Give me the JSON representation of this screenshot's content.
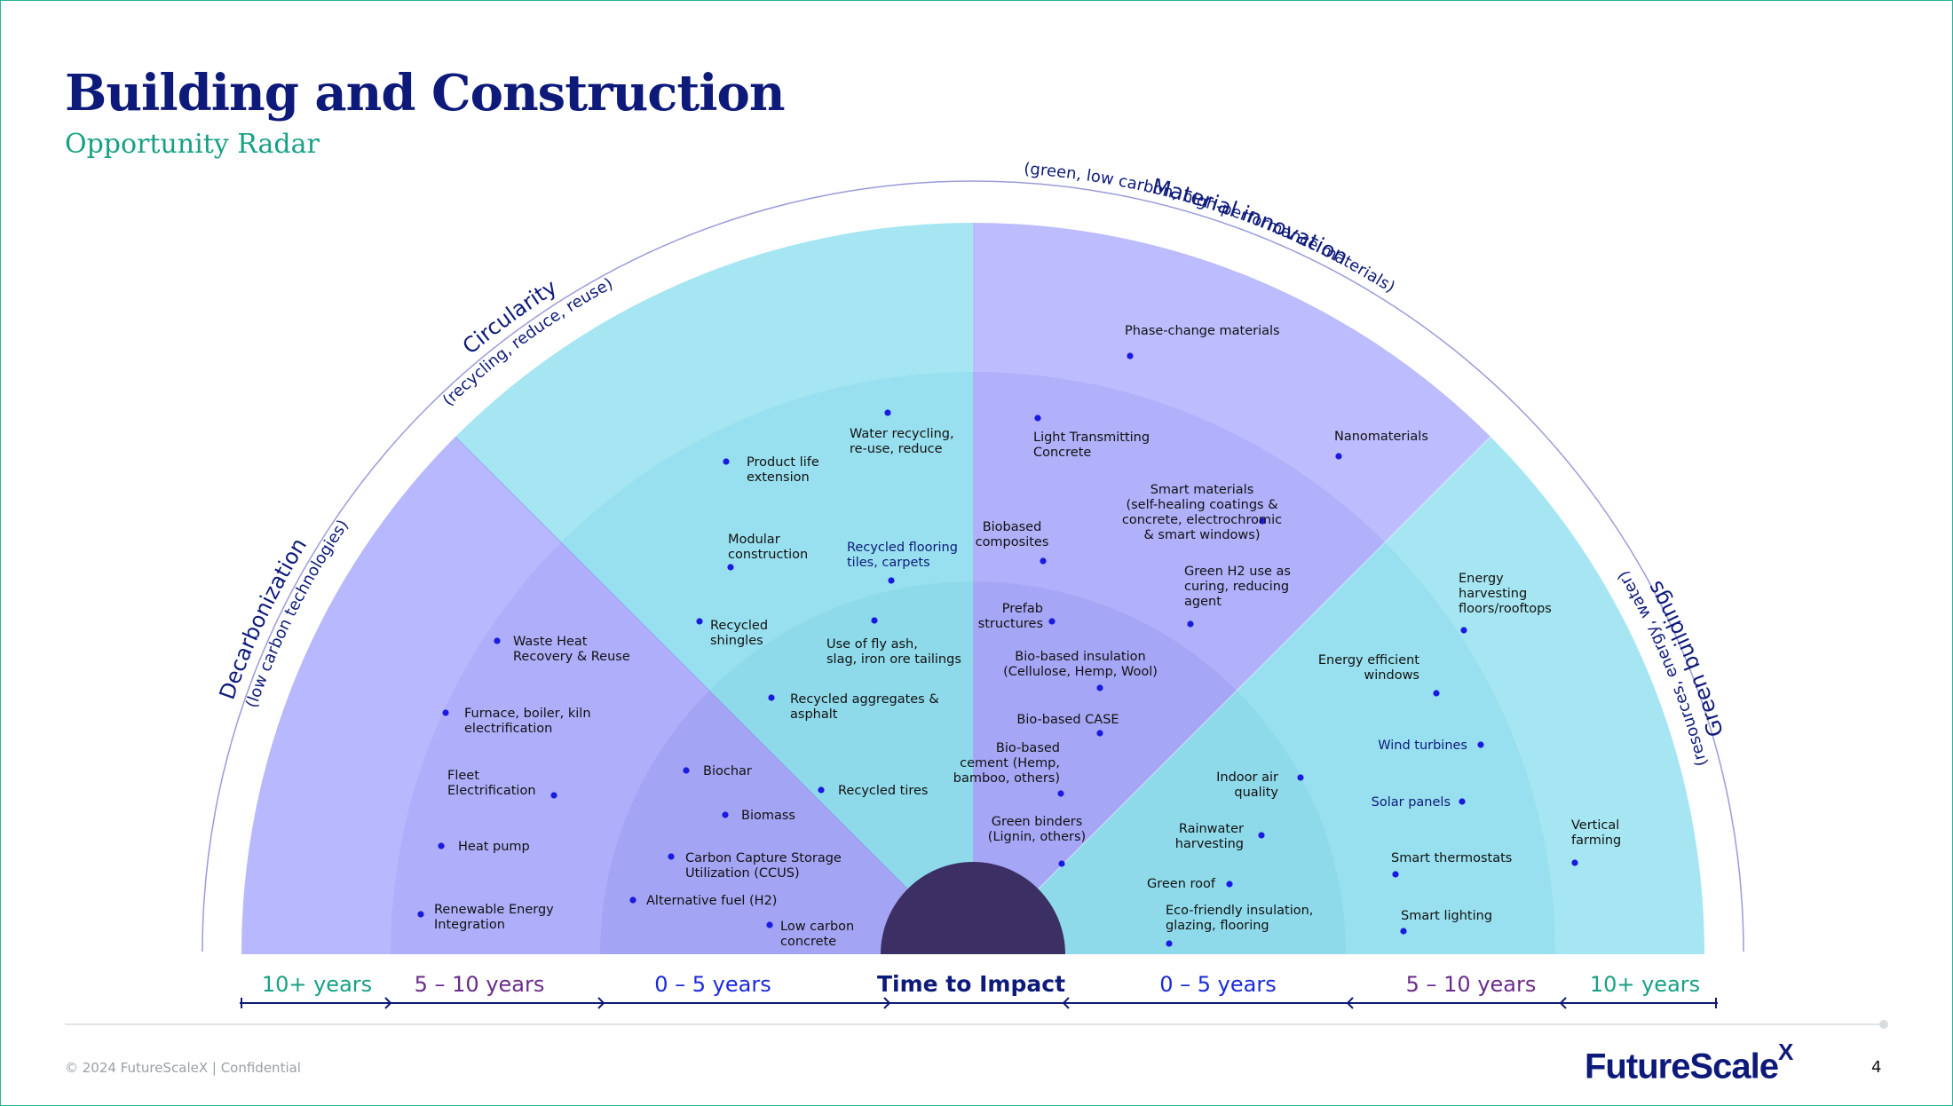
{
  "header": {
    "title": "Building and Construction",
    "subtitle": "Opportunity Radar"
  },
  "categories": [
    {
      "title": "Decarbonization",
      "subtitle": "(low carbon technologies)"
    },
    {
      "title": "Circularity",
      "subtitle": "(recycling, reduce, reuse)"
    },
    {
      "title": "Material innovation",
      "subtitle": "(green, low carbon, high-performance materials)"
    },
    {
      "title": "Green buildings",
      "subtitle": "(resources, energy, water)"
    }
  ],
  "center_label": "Time to Impact",
  "axis_labels": {
    "left": [
      "10+ years",
      "5 – 10 years",
      "0 – 5 years"
    ],
    "right": [
      "0 – 5 years",
      "5 – 10 years",
      "10+ years"
    ]
  },
  "colors": {
    "title": "#0d1a7a",
    "subtitle": "#17a085",
    "purple_outer": "#b8b8ff",
    "purple_mid": "#aeaefa",
    "purple_inner": "#a4a4f4",
    "cyan_outer": "#a6e6f2",
    "cyan_mid": "#98e0ef",
    "cyan_inner": "#8edaea",
    "hub": "#3b2f63",
    "dot": "#1a1ae0",
    "teal_label": "#17a085",
    "purple_label": "#6a2b8a",
    "blue_label": "#1a2ad8"
  },
  "items": [
    {
      "text": [
        "Waste Heat",
        "Recovery & Reuse"
      ]
    },
    {
      "text": [
        "Furnace, boiler, kiln",
        "electrification"
      ]
    },
    {
      "text": [
        "Fleet",
        "Electrification"
      ]
    },
    {
      "text": [
        "Heat pump"
      ]
    },
    {
      "text": [
        "Renewable Energy",
        "Integration"
      ]
    },
    {
      "text": [
        "Biochar"
      ]
    },
    {
      "text": [
        "Biomass"
      ]
    },
    {
      "text": [
        "Carbon Capture Storage",
        "Utilization (CCUS)"
      ]
    },
    {
      "text": [
        "Alternative fuel (H2)"
      ]
    },
    {
      "text": [
        "Low carbon",
        "concrete"
      ]
    },
    {
      "text": [
        "Water recycling,",
        "re-use, reduce"
      ]
    },
    {
      "text": [
        "Product life",
        "extension"
      ]
    },
    {
      "text": [
        "Modular",
        "construction"
      ]
    },
    {
      "text": [
        "Recycled flooring",
        "tiles, carpets"
      ],
      "highlight": true
    },
    {
      "text": [
        "Recycled",
        "shingles"
      ]
    },
    {
      "text": [
        "Use of fly ash,",
        "slag, iron ore tailings"
      ]
    },
    {
      "text": [
        "Recycled aggregates &",
        "asphalt"
      ]
    },
    {
      "text": [
        "Recycled tires"
      ]
    },
    {
      "text": [
        "Phase-change materials"
      ]
    },
    {
      "text": [
        "Light Transmitting",
        "Concrete"
      ]
    },
    {
      "text": [
        "Nanomaterials"
      ]
    },
    {
      "text": [
        "Smart materials",
        "(self-healing coatings &",
        "concrete, electrochromic",
        "& smart windows)"
      ]
    },
    {
      "text": [
        "Biobased",
        "composites"
      ]
    },
    {
      "text": [
        "Green H2 use as",
        "curing, reducing",
        "agent"
      ]
    },
    {
      "text": [
        "Prefab",
        "structures"
      ]
    },
    {
      "text": [
        "Bio-based insulation",
        "(Cellulose, Hemp, Wool)"
      ]
    },
    {
      "text": [
        "Bio-based CASE"
      ]
    },
    {
      "text": [
        "Bio-based",
        "cement (Hemp,",
        "bamboo, others)"
      ]
    },
    {
      "text": [
        "Green binders",
        "(Lignin, others)"
      ]
    },
    {
      "text": [
        "Energy",
        "harvesting",
        "floors/rooftops"
      ]
    },
    {
      "text": [
        "Energy efficient",
        "windows"
      ]
    },
    {
      "text": [
        "Wind turbines"
      ],
      "highlight": true
    },
    {
      "text": [
        "Solar panels"
      ],
      "highlight": true
    },
    {
      "text": [
        "Smart thermostats"
      ]
    },
    {
      "text": [
        "Smart lighting"
      ]
    },
    {
      "text": [
        "Vertical",
        "farming"
      ]
    },
    {
      "text": [
        "Indoor air",
        "quality"
      ]
    },
    {
      "text": [
        "Rainwater",
        "harvesting"
      ]
    },
    {
      "text": [
        "Green roof"
      ]
    },
    {
      "text": [
        "Eco-friendly insulation,",
        "glazing, flooring"
      ]
    }
  ],
  "footer": {
    "copyright": "© 2024 FutureScaleX | Confidential",
    "logo": "FutureScale",
    "logo_sup": "X",
    "page": "4"
  }
}
